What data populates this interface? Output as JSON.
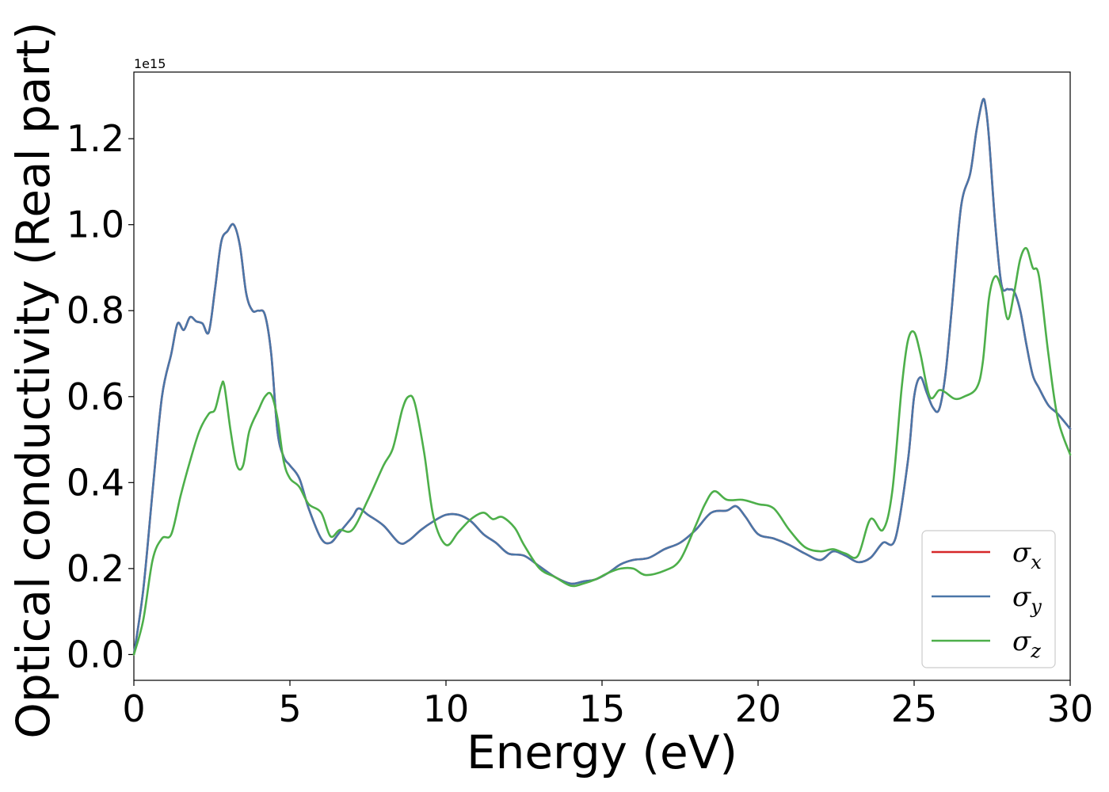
{
  "chart_data": {
    "type": "line",
    "xlabel": "Energy (eV)",
    "ylabel": "Optical conductivity (Real part)",
    "y_offset_label": "1e15",
    "xlim": [
      0,
      30
    ],
    "ylim": [
      -0.06,
      1.355
    ],
    "x_ticks": [
      "0",
      "5",
      "10",
      "15",
      "20",
      "25",
      "30"
    ],
    "y_ticks": [
      "0.0",
      "0.2",
      "0.4",
      "0.6",
      "0.8",
      "1.0",
      "1.2"
    ],
    "legend_position": "lower-right",
    "series": [
      {
        "name": "σx",
        "legend_symbol": "σ",
        "legend_sub": "x",
        "color": "#d62728",
        "x": [
          0,
          0.3,
          0.6,
          0.9,
          1.2,
          1.4,
          1.6,
          1.8,
          2.0,
          2.2,
          2.4,
          2.6,
          2.8,
          3.0,
          3.2,
          3.4,
          3.6,
          3.8,
          4.0,
          4.2,
          4.4,
          4.6,
          4.8,
          5.0,
          5.3,
          5.6,
          6.0,
          6.3,
          6.6,
          7.0,
          7.2,
          7.5,
          8.0,
          8.5,
          8.8,
          9.2,
          9.6,
          10.0,
          10.4,
          10.8,
          11.2,
          11.6,
          12.0,
          12.5,
          13.0,
          13.5,
          14.0,
          14.4,
          14.8,
          15.2,
          15.6,
          16.0,
          16.5,
          17.0,
          17.5,
          18.0,
          18.5,
          19.0,
          19.3,
          19.6,
          20.0,
          20.5,
          21.0,
          21.5,
          22.0,
          22.4,
          22.8,
          23.2,
          23.6,
          24.0,
          24.4,
          24.8,
          25.0,
          25.2,
          25.4,
          25.6,
          25.8,
          26.0,
          26.2,
          26.5,
          26.8,
          27.0,
          27.2,
          27.3,
          27.4,
          27.6,
          27.8,
          28.0,
          28.2,
          28.4,
          28.6,
          28.8,
          29.0,
          29.3,
          29.6,
          30.0
        ],
        "y": [
          0.0,
          0.15,
          0.38,
          0.6,
          0.7,
          0.77,
          0.755,
          0.785,
          0.775,
          0.77,
          0.75,
          0.85,
          0.96,
          0.985,
          1.0,
          0.95,
          0.84,
          0.8,
          0.8,
          0.79,
          0.7,
          0.52,
          0.46,
          0.44,
          0.41,
          0.34,
          0.27,
          0.26,
          0.285,
          0.32,
          0.34,
          0.325,
          0.3,
          0.26,
          0.265,
          0.29,
          0.31,
          0.325,
          0.325,
          0.31,
          0.28,
          0.26,
          0.235,
          0.23,
          0.205,
          0.18,
          0.165,
          0.17,
          0.175,
          0.19,
          0.21,
          0.22,
          0.225,
          0.245,
          0.26,
          0.29,
          0.33,
          0.335,
          0.345,
          0.32,
          0.28,
          0.27,
          0.255,
          0.235,
          0.22,
          0.24,
          0.23,
          0.215,
          0.225,
          0.26,
          0.27,
          0.45,
          0.6,
          0.645,
          0.61,
          0.575,
          0.57,
          0.65,
          0.8,
          1.04,
          1.12,
          1.22,
          1.29,
          1.27,
          1.2,
          1.0,
          0.86,
          0.85,
          0.845,
          0.8,
          0.72,
          0.65,
          0.62,
          0.58,
          0.56,
          0.525
        ]
      },
      {
        "name": "σy",
        "legend_symbol": "σ",
        "legend_sub": "y",
        "color": "#4a76a8",
        "x": [
          0,
          0.3,
          0.6,
          0.9,
          1.2,
          1.4,
          1.6,
          1.8,
          2.0,
          2.2,
          2.4,
          2.6,
          2.8,
          3.0,
          3.2,
          3.4,
          3.6,
          3.8,
          4.0,
          4.2,
          4.4,
          4.6,
          4.8,
          5.0,
          5.3,
          5.6,
          6.0,
          6.3,
          6.6,
          7.0,
          7.2,
          7.5,
          8.0,
          8.5,
          8.8,
          9.2,
          9.6,
          10.0,
          10.4,
          10.8,
          11.2,
          11.6,
          12.0,
          12.5,
          13.0,
          13.5,
          14.0,
          14.4,
          14.8,
          15.2,
          15.6,
          16.0,
          16.5,
          17.0,
          17.5,
          18.0,
          18.5,
          19.0,
          19.3,
          19.6,
          20.0,
          20.5,
          21.0,
          21.5,
          22.0,
          22.4,
          22.8,
          23.2,
          23.6,
          24.0,
          24.4,
          24.8,
          25.0,
          25.2,
          25.4,
          25.6,
          25.8,
          26.0,
          26.2,
          26.5,
          26.8,
          27.0,
          27.2,
          27.3,
          27.4,
          27.6,
          27.8,
          28.0,
          28.2,
          28.4,
          28.6,
          28.8,
          29.0,
          29.3,
          29.6,
          30.0
        ],
        "y": [
          0.0,
          0.15,
          0.38,
          0.6,
          0.7,
          0.77,
          0.755,
          0.785,
          0.775,
          0.77,
          0.75,
          0.85,
          0.96,
          0.985,
          1.0,
          0.95,
          0.84,
          0.8,
          0.8,
          0.79,
          0.7,
          0.52,
          0.46,
          0.44,
          0.41,
          0.34,
          0.27,
          0.26,
          0.285,
          0.32,
          0.34,
          0.325,
          0.3,
          0.26,
          0.265,
          0.29,
          0.31,
          0.325,
          0.325,
          0.31,
          0.28,
          0.26,
          0.235,
          0.23,
          0.205,
          0.18,
          0.165,
          0.17,
          0.175,
          0.19,
          0.21,
          0.22,
          0.225,
          0.245,
          0.26,
          0.29,
          0.33,
          0.335,
          0.345,
          0.32,
          0.28,
          0.27,
          0.255,
          0.235,
          0.22,
          0.24,
          0.23,
          0.215,
          0.225,
          0.26,
          0.27,
          0.45,
          0.6,
          0.645,
          0.61,
          0.575,
          0.57,
          0.65,
          0.8,
          1.04,
          1.12,
          1.22,
          1.29,
          1.27,
          1.2,
          1.0,
          0.86,
          0.85,
          0.845,
          0.8,
          0.72,
          0.65,
          0.62,
          0.58,
          0.56,
          0.525
        ]
      },
      {
        "name": "σz",
        "legend_symbol": "σ",
        "legend_sub": "z",
        "color": "#4daf4a",
        "x": [
          0,
          0.3,
          0.6,
          0.9,
          1.2,
          1.5,
          1.8,
          2.1,
          2.4,
          2.6,
          2.8,
          2.9,
          3.1,
          3.3,
          3.5,
          3.7,
          4.0,
          4.2,
          4.4,
          4.6,
          4.8,
          5.0,
          5.3,
          5.6,
          6.0,
          6.3,
          6.6,
          7.0,
          7.5,
          8.0,
          8.3,
          8.6,
          8.8,
          9.0,
          9.3,
          9.6,
          10.0,
          10.4,
          10.8,
          11.2,
          11.5,
          11.8,
          12.2,
          12.5,
          13.0,
          13.5,
          14.0,
          14.4,
          14.8,
          15.2,
          15.6,
          16.0,
          16.4,
          17.0,
          17.5,
          18.0,
          18.3,
          18.6,
          19.0,
          19.5,
          20.0,
          20.5,
          21.0,
          21.5,
          22.0,
          22.4,
          22.8,
          23.2,
          23.6,
          24.0,
          24.3,
          24.6,
          24.8,
          25.0,
          25.2,
          25.5,
          25.8,
          26.0,
          26.3,
          26.6,
          27.0,
          27.2,
          27.4,
          27.6,
          27.8,
          28.0,
          28.2,
          28.4,
          28.6,
          28.8,
          29.0,
          29.3,
          29.6,
          30.0
        ],
        "y": [
          0.0,
          0.08,
          0.22,
          0.27,
          0.28,
          0.37,
          0.45,
          0.52,
          0.56,
          0.57,
          0.625,
          0.625,
          0.52,
          0.44,
          0.44,
          0.52,
          0.57,
          0.6,
          0.605,
          0.55,
          0.45,
          0.41,
          0.39,
          0.35,
          0.33,
          0.275,
          0.29,
          0.29,
          0.36,
          0.44,
          0.48,
          0.57,
          0.6,
          0.585,
          0.47,
          0.32,
          0.255,
          0.285,
          0.315,
          0.33,
          0.315,
          0.32,
          0.295,
          0.255,
          0.2,
          0.18,
          0.16,
          0.165,
          0.175,
          0.19,
          0.2,
          0.2,
          0.185,
          0.195,
          0.22,
          0.3,
          0.35,
          0.38,
          0.36,
          0.36,
          0.35,
          0.34,
          0.29,
          0.25,
          0.24,
          0.245,
          0.235,
          0.23,
          0.315,
          0.29,
          0.38,
          0.62,
          0.73,
          0.75,
          0.7,
          0.6,
          0.615,
          0.61,
          0.595,
          0.6,
          0.62,
          0.68,
          0.83,
          0.88,
          0.85,
          0.78,
          0.84,
          0.92,
          0.945,
          0.9,
          0.88,
          0.7,
          0.55,
          0.465
        ]
      }
    ]
  }
}
